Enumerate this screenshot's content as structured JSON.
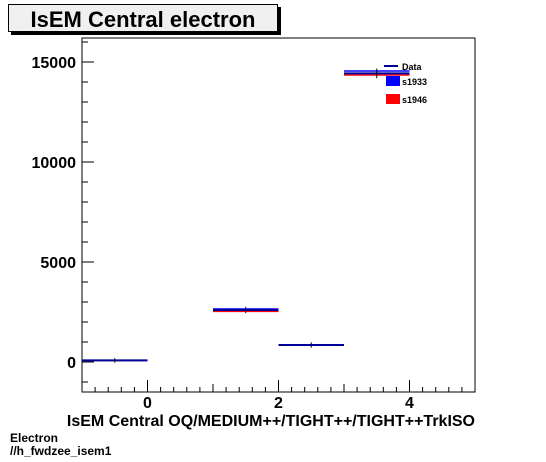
{
  "title": "IsEM Central electron",
  "footer": {
    "line1": "Electron",
    "line2": "//h_fwdzee_isem1"
  },
  "colors": {
    "data": "#000099",
    "s1933": "#0000ff",
    "s1946": "#ff0000"
  },
  "chart_data": {
    "type": "bar",
    "xlabel": "IsEM Central OQ/MEDIUM++/TIGHT++/TIGHT++TrkISO",
    "ylabel": "",
    "xlim": [
      -1,
      5
    ],
    "ylim": [
      -1500,
      16200
    ],
    "xticks": [
      0,
      2,
      4
    ],
    "xtick_labels": [
      "0",
      "2",
      "4"
    ],
    "yticks": [
      0,
      5000,
      10000,
      15000
    ],
    "ytick_labels": [
      "0",
      "5000",
      "10000",
      "15000"
    ],
    "legend_position": "top-right",
    "bin_edges": [
      -1,
      0,
      1,
      2,
      3,
      4
    ],
    "series": [
      {
        "name": "Data",
        "style": "markers",
        "values": [
          80,
          0,
          2600,
          850,
          14430
        ],
        "errors": [
          10,
          0,
          60,
          30,
          140
        ]
      },
      {
        "name": "s1933",
        "style": "hist",
        "values": [
          80,
          0,
          2650,
          860,
          14550
        ]
      },
      {
        "name": "s1946",
        "style": "hist",
        "values": [
          80,
          0,
          2530,
          840,
          14350
        ]
      }
    ]
  }
}
